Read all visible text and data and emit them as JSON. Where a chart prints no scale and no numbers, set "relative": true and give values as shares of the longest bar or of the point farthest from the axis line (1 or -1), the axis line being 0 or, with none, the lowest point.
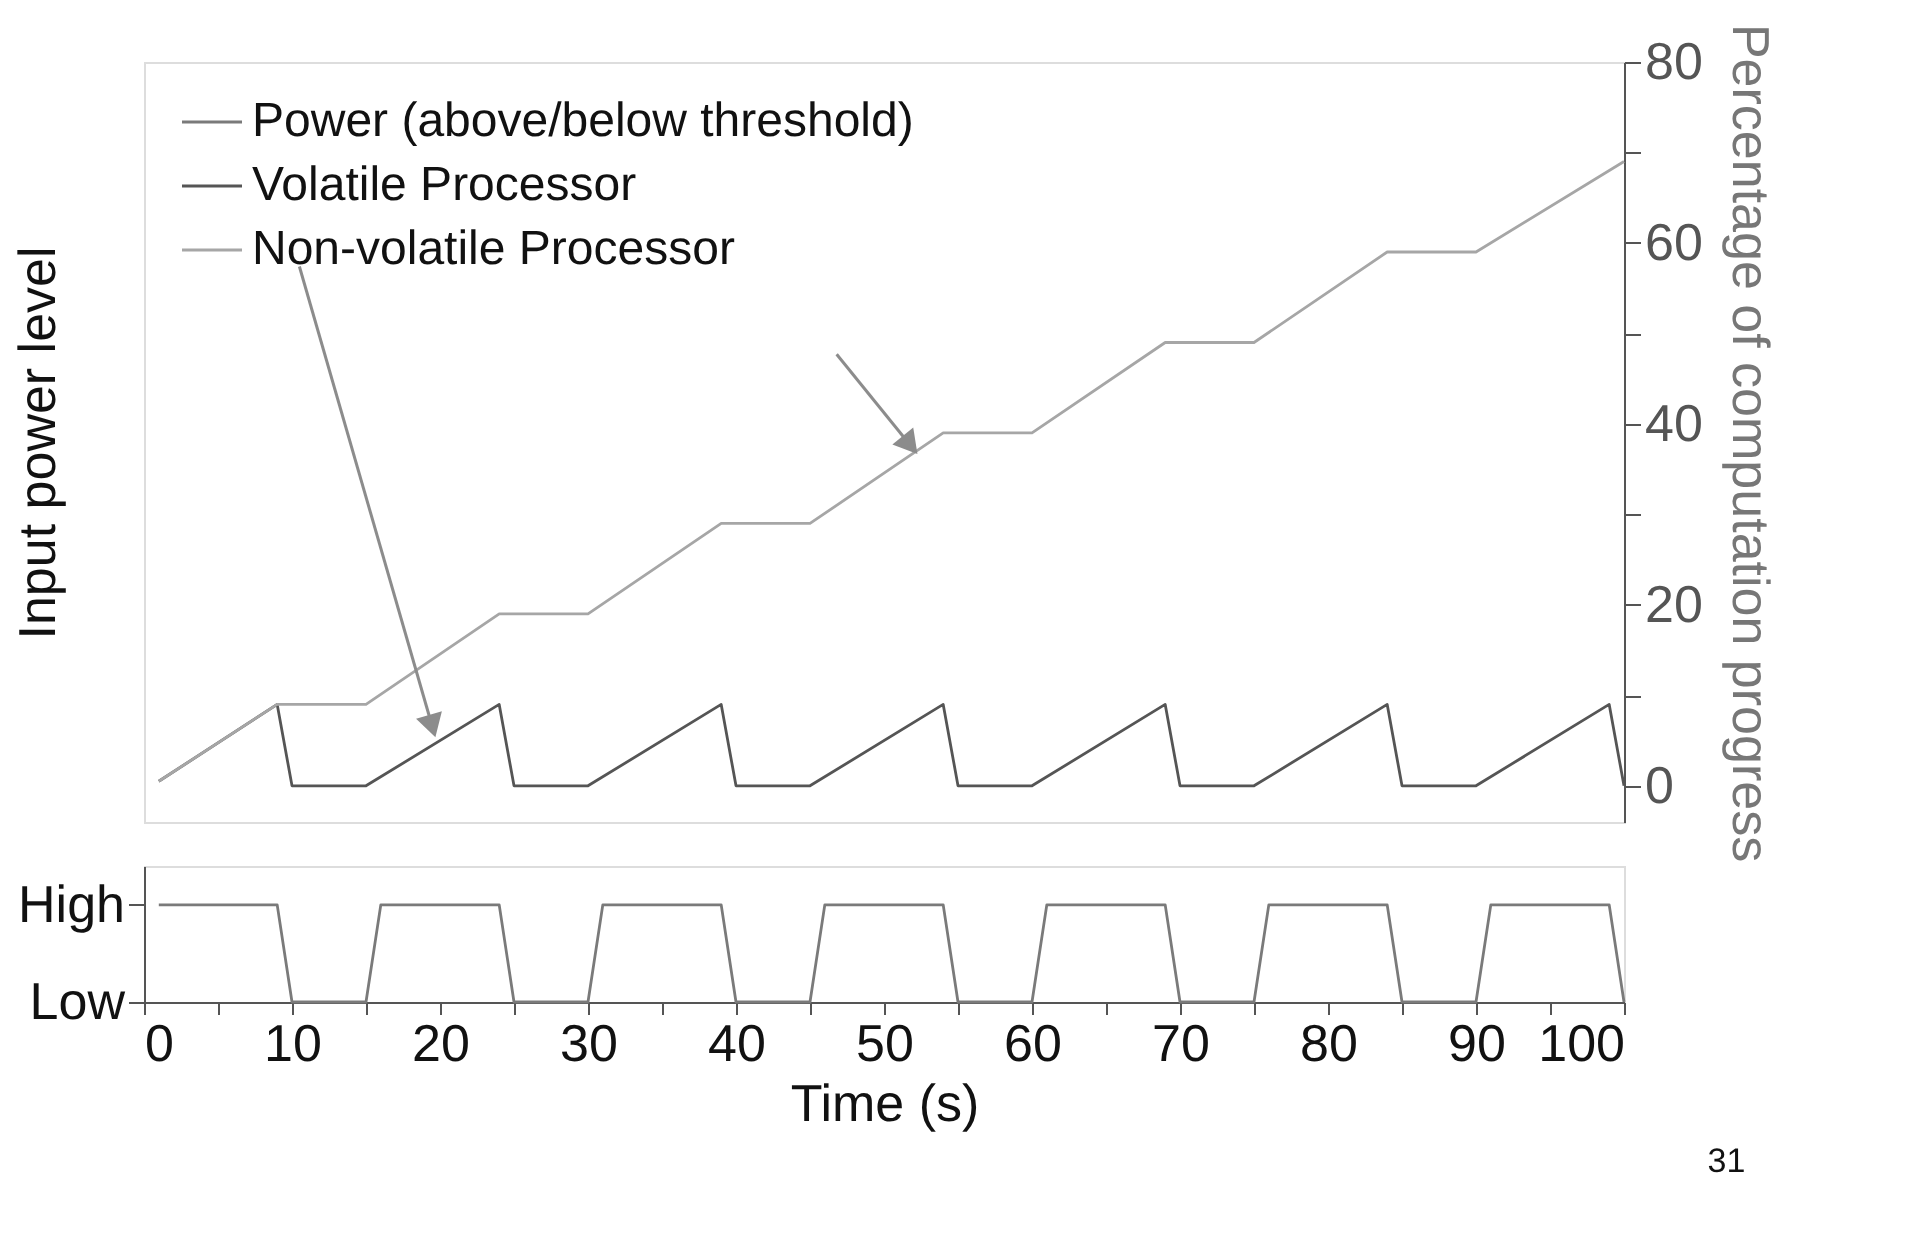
{
  "chart_data": [
    {
      "type": "line",
      "ylabel": "Input power level",
      "y2label": "Percentage of computation progress",
      "xlim": [
        0,
        100
      ],
      "y2lim": [
        -4,
        80
      ],
      "y2ticks": [
        0,
        {
          "value": 10,
          "label": null
        },
        20,
        {
          "value": 30,
          "label": null
        },
        40,
        {
          "value": 50,
          "label": null
        },
        60,
        {
          "value": 70,
          "label": null
        },
        80
      ],
      "tick_labels": "y2",
      "legend": "top left",
      "grid": false,
      "series": [
        {
          "name": "Volatile Processor",
          "color": "#555555",
          "axis": "y2",
          "x": [
            1,
            9,
            10,
            15,
            24,
            25,
            30,
            39,
            40,
            45,
            54,
            55,
            60,
            69,
            70,
            75,
            84,
            85,
            90,
            99,
            100
          ],
          "values": [
            0.5,
            9,
            0,
            0,
            9,
            0,
            0,
            9,
            0,
            0,
            9,
            0,
            0,
            9,
            0,
            0,
            9,
            0,
            0,
            9,
            0
          ]
        },
        {
          "name": "Non-volatile Processor",
          "color": "#a6a6a6",
          "axis": "y2",
          "x": [
            1,
            9,
            15,
            24,
            30,
            39,
            45,
            54,
            60,
            69,
            75,
            84,
            90,
            100
          ],
          "values": [
            0.5,
            9,
            9,
            19,
            19,
            29,
            29,
            39,
            39,
            49,
            49,
            59,
            59,
            69
          ]
        }
      ]
    },
    {
      "type": "line",
      "xlabel": "Time (s)",
      "xlim": [
        0,
        100
      ],
      "relative": true,
      "xticks": [
        0,
        {
          "value": 5,
          "label": null
        },
        10,
        {
          "value": 15,
          "label": null
        },
        20,
        {
          "value": 25,
          "label": null
        },
        30,
        {
          "value": 35,
          "label": null
        },
        40,
        {
          "value": 45,
          "label": null
        },
        50,
        {
          "value": 55,
          "label": null
        },
        60,
        {
          "value": 65,
          "label": null
        },
        70,
        {
          "value": 75,
          "label": null
        },
        80,
        {
          "value": 85,
          "label": null
        },
        90,
        {
          "value": 95,
          "label": null
        },
        100
      ],
      "grid": false,
      "y_categories": [
        "High",
        "Low"
      ],
      "annotations": [
        "31"
      ],
      "series": [
        {
          "name": "Power (above/below threshold)",
          "color": "#7a7a7a",
          "x": [
            1,
            9,
            10,
            15,
            16,
            24,
            25,
            30,
            31,
            39,
            40,
            45,
            46,
            54,
            55,
            60,
            61,
            69,
            70,
            75,
            76,
            84,
            85,
            90,
            91,
            99,
            100
          ],
          "values": [
            1,
            1,
            0,
            0,
            1,
            1,
            0,
            0,
            1,
            1,
            0,
            0,
            1,
            1,
            0,
            0,
            1,
            1,
            0,
            0,
            1,
            1,
            0,
            0,
            1,
            1,
            0
          ]
        }
      ]
    }
  ]
}
